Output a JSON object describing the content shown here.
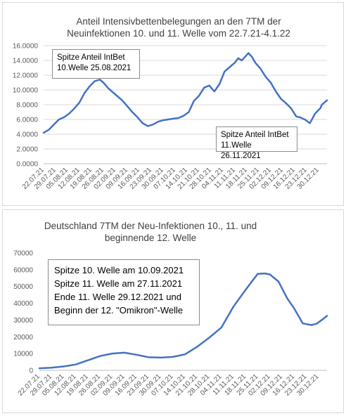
{
  "chart_data": [
    {
      "type": "line",
      "title": "Anteil Intensivbettenbelegungen an den 7TM der\nNeuinfektionen 10. und 11. Welle vom 22.7.21-4.1.22",
      "ylim": [
        0,
        16
      ],
      "yticks": [
        "0.0000",
        "2.0000",
        "4.0000",
        "6.0000",
        "8.0000",
        "10.0000",
        "12.0000",
        "14.0000",
        "16.0000"
      ],
      "xlim": [
        0,
        166
      ],
      "categories": [
        "22.07.21",
        "29.07.21",
        "05.08.21",
        "12.08.21",
        "19.08.21",
        "26.08.21",
        "02.09.21",
        "09.09.21",
        "16.09.21",
        "23.09.21",
        "30.09.21",
        "07.10.21",
        "14.10.21",
        "21.10.21",
        "28.10.21",
        "04.11.21",
        "11.11.21",
        "18.11.21",
        "25.11.21",
        "02.12.21",
        "09.12.21",
        "16.12.21",
        "23.12.21",
        "30.12.21"
      ],
      "grid": true,
      "color": "#4472c4",
      "series": [
        {
          "x": [
            0,
            3,
            6,
            9,
            12,
            15,
            18,
            21,
            24,
            27,
            30,
            33,
            35,
            38,
            41,
            44,
            46,
            49,
            52,
            55,
            58,
            61,
            64,
            67,
            70,
            73,
            76,
            79,
            82,
            85,
            88,
            91,
            94,
            97,
            100,
            103,
            106,
            109,
            112,
            114,
            116,
            118,
            120,
            122,
            124,
            127,
            130,
            133,
            136,
            139,
            142,
            145,
            148,
            150,
            153,
            156,
            159,
            162,
            163,
            164,
            166
          ],
          "values": [
            4.2,
            4.6,
            5.3,
            6.0,
            6.3,
            6.8,
            7.5,
            8.3,
            9.6,
            10.5,
            11.2,
            11.4,
            11.0,
            10.2,
            9.6,
            9.0,
            8.6,
            7.8,
            7.0,
            6.3,
            5.5,
            5.1,
            5.3,
            5.7,
            5.9,
            6.0,
            6.1,
            6.2,
            6.5,
            7.0,
            8.5,
            9.2,
            10.3,
            10.6,
            9.8,
            10.8,
            12.5,
            13.1,
            13.7,
            14.3,
            14.0,
            14.5,
            15.0,
            14.5,
            13.7,
            12.9,
            11.8,
            11.0,
            9.8,
            8.8,
            8.2,
            7.5,
            6.4,
            6.3,
            6.0,
            5.5,
            6.8,
            7.5,
            8.0,
            8.2,
            8.6
          ]
        }
      ],
      "annotations": [
        "Spitze Anteil IntBet\n10.Welle 25.08.2021",
        "Spitze Anteil IntBet\n11.Welle 26.11.2021"
      ]
    },
    {
      "type": "line",
      "title": "Deutschland 7TM der Neu-Infektionen 10., 11. und\nbeginnende 12. Welle",
      "ylim": [
        0,
        70000
      ],
      "yticks": [
        "0",
        "10000",
        "20000",
        "30000",
        "40000",
        "50000",
        "60000",
        "70000"
      ],
      "xlim": [
        0,
        166
      ],
      "categories": [
        "22.07.21",
        "29.07.21",
        "05.08.21",
        "12.08.21",
        "19.08.21",
        "26.08.21",
        "02.09.21",
        "09.09.21",
        "16.09.21",
        "23.09.21",
        "30.09.21",
        "07.10.21",
        "14.10.21",
        "21.10.21",
        "28.10.21",
        "04.11.21",
        "11.11.21",
        "18.11.21",
        "25.11.21",
        "02.12.21",
        "09.12.21",
        "16.12.21",
        "23.12.21",
        "30.12.21"
      ],
      "grid": false,
      "color": "#4472c4",
      "series": [
        {
          "x": [
            0,
            7,
            14,
            21,
            28,
            35,
            42,
            49,
            56,
            63,
            70,
            77,
            84,
            91,
            98,
            105,
            112,
            119,
            126,
            130,
            133,
            138,
            143,
            147,
            152,
            157,
            160,
            163,
            166
          ],
          "values": [
            1200,
            1600,
            2300,
            3500,
            6000,
            8500,
            10000,
            10500,
            9300,
            7800,
            7600,
            8000,
            9500,
            14000,
            19500,
            25500,
            38000,
            48000,
            57500,
            57800,
            57200,
            53000,
            43000,
            37000,
            28000,
            27000,
            27800,
            30000,
            32500
          ]
        }
      ],
      "annotations": [
        "Spitze 10. Welle am 10.09.2021\nSpitze 11. Welle am 27.11.2021\nEnde 11. Welle 29.12.2021 und\nBeginn der 12. \"Omikron\"-Welle"
      ]
    }
  ]
}
